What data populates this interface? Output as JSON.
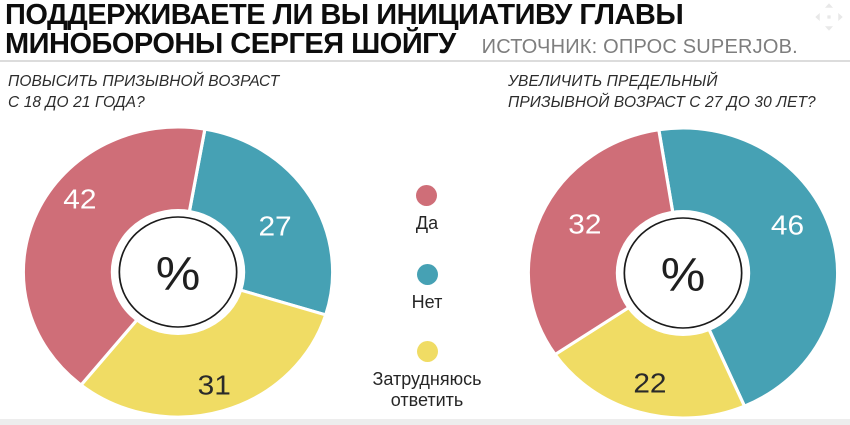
{
  "header": {
    "title_line1": "ПОДДЕРЖИВАЕТЕ ЛИ ВЫ ИНИЦИАТИВУ ГЛАВЫ",
    "title_line2": "МИНОБОРОНЫ СЕРГЕЯ ШОЙГУ",
    "source": "ИСТОЧНИК: ОПРОС SUPERJOB.",
    "move_icon": "move-arrows-icon"
  },
  "legend": {
    "items": [
      {
        "label": "Да",
        "color": "#cf6e78"
      },
      {
        "label": "Нет",
        "color": "#46a1b4"
      },
      {
        "label": "Затрудняюсь ответить",
        "color": "#f0dc64"
      }
    ]
  },
  "chart_data": [
    {
      "type": "pie",
      "title": "ПОВЫСИТЬ ПРИЗЫВНОЙ ВОЗРАСТ\nС 18 ДО 21 ГОДА?",
      "unit": "%",
      "center_label": "%",
      "categories": [
        "Да",
        "Нет",
        "Затрудняюсь ответить"
      ],
      "values": [
        42,
        27,
        31
      ],
      "colors": [
        "#cf6e78",
        "#46a1b4",
        "#f0dc64"
      ],
      "value_text_colors": [
        "#ffffff",
        "#ffffff",
        "#2a2a2a"
      ],
      "donut_hole": true,
      "start_angle_deg": 10,
      "clockwise_order": [
        "Нет",
        "Затрудняюсь ответить",
        "Да"
      ],
      "legend_position": "center-between-charts"
    },
    {
      "type": "pie",
      "title": "УВЕЛИЧИТЬ ПРЕДЕЛЬНЫЙ\nПРИЗЫВНОЙ ВОЗРАСТ С 27 ДО 30 ЛЕТ?",
      "unit": "%",
      "center_label": "%",
      "categories": [
        "Да",
        "Нет",
        "Затрудняюсь ответить"
      ],
      "values": [
        32,
        46,
        22
      ],
      "colors": [
        "#cf6e78",
        "#46a1b4",
        "#f0dc64"
      ],
      "value_text_colors": [
        "#ffffff",
        "#ffffff",
        "#2a2a2a"
      ],
      "donut_hole": true,
      "start_angle_deg": -9,
      "clockwise_order": [
        "Нет",
        "Затрудняюсь ответить",
        "Да"
      ],
      "legend_position": "center-between-charts"
    }
  ]
}
